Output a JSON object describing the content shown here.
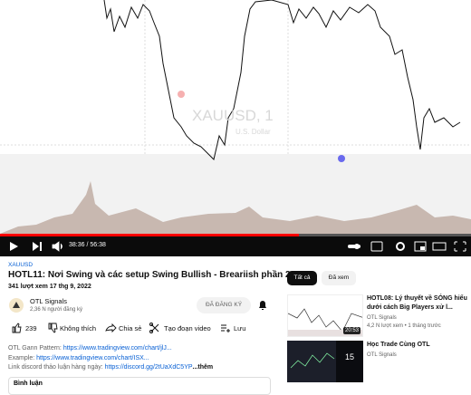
{
  "video": {
    "chart_symbol": "XAUUSD, 1",
    "chart_currency": "U.S. Dollar",
    "time": "38:36 / 56:38"
  },
  "details": {
    "tag": "XAUUSD",
    "title": "HOTL11: Nơi Swing và các setup Swing Bullish - Breariish phần 2",
    "meta": "341 lượt xem  17 thg 9, 2022",
    "channel": "OTL Signals",
    "subscribers": "2,36 N người đăng ký",
    "subscribe_button": "ĐÃ ĐĂNG KÝ",
    "actions": {
      "likes": "239",
      "dislike": "Không thích",
      "share": "Chia sẻ",
      "clip": "Tạo đoạn video",
      "save": "Lưu"
    },
    "description": [
      {
        "label": "OTL Gann Pattern: ",
        "link": "https://www.tradingview.com/chart/jlJ..."
      },
      {
        "label": "Example: ",
        "link": "https://www.tradingview.com/chart/ISX..."
      },
      {
        "label": "Link discord thảo luận hàng ngày: ",
        "link": "https://discord.gg/2tUaXdC5YP",
        "more": "...thêm"
      }
    ],
    "comments": "Bình luận"
  },
  "sidebar": {
    "chips": [
      "Tất cả",
      "Đã xem"
    ],
    "items": [
      {
        "title": "HOTL08: Lý thuyết về SÓNG hiểu dưới cách Big Players xử l...",
        "channel": "OTL Signals",
        "meta": "4,2 N lượt xem • 1 tháng trước",
        "duration": "20:53"
      },
      {
        "title": "Học Trade Cùng OTL",
        "channel": "OTL Signals",
        "count": "15"
      }
    ]
  }
}
